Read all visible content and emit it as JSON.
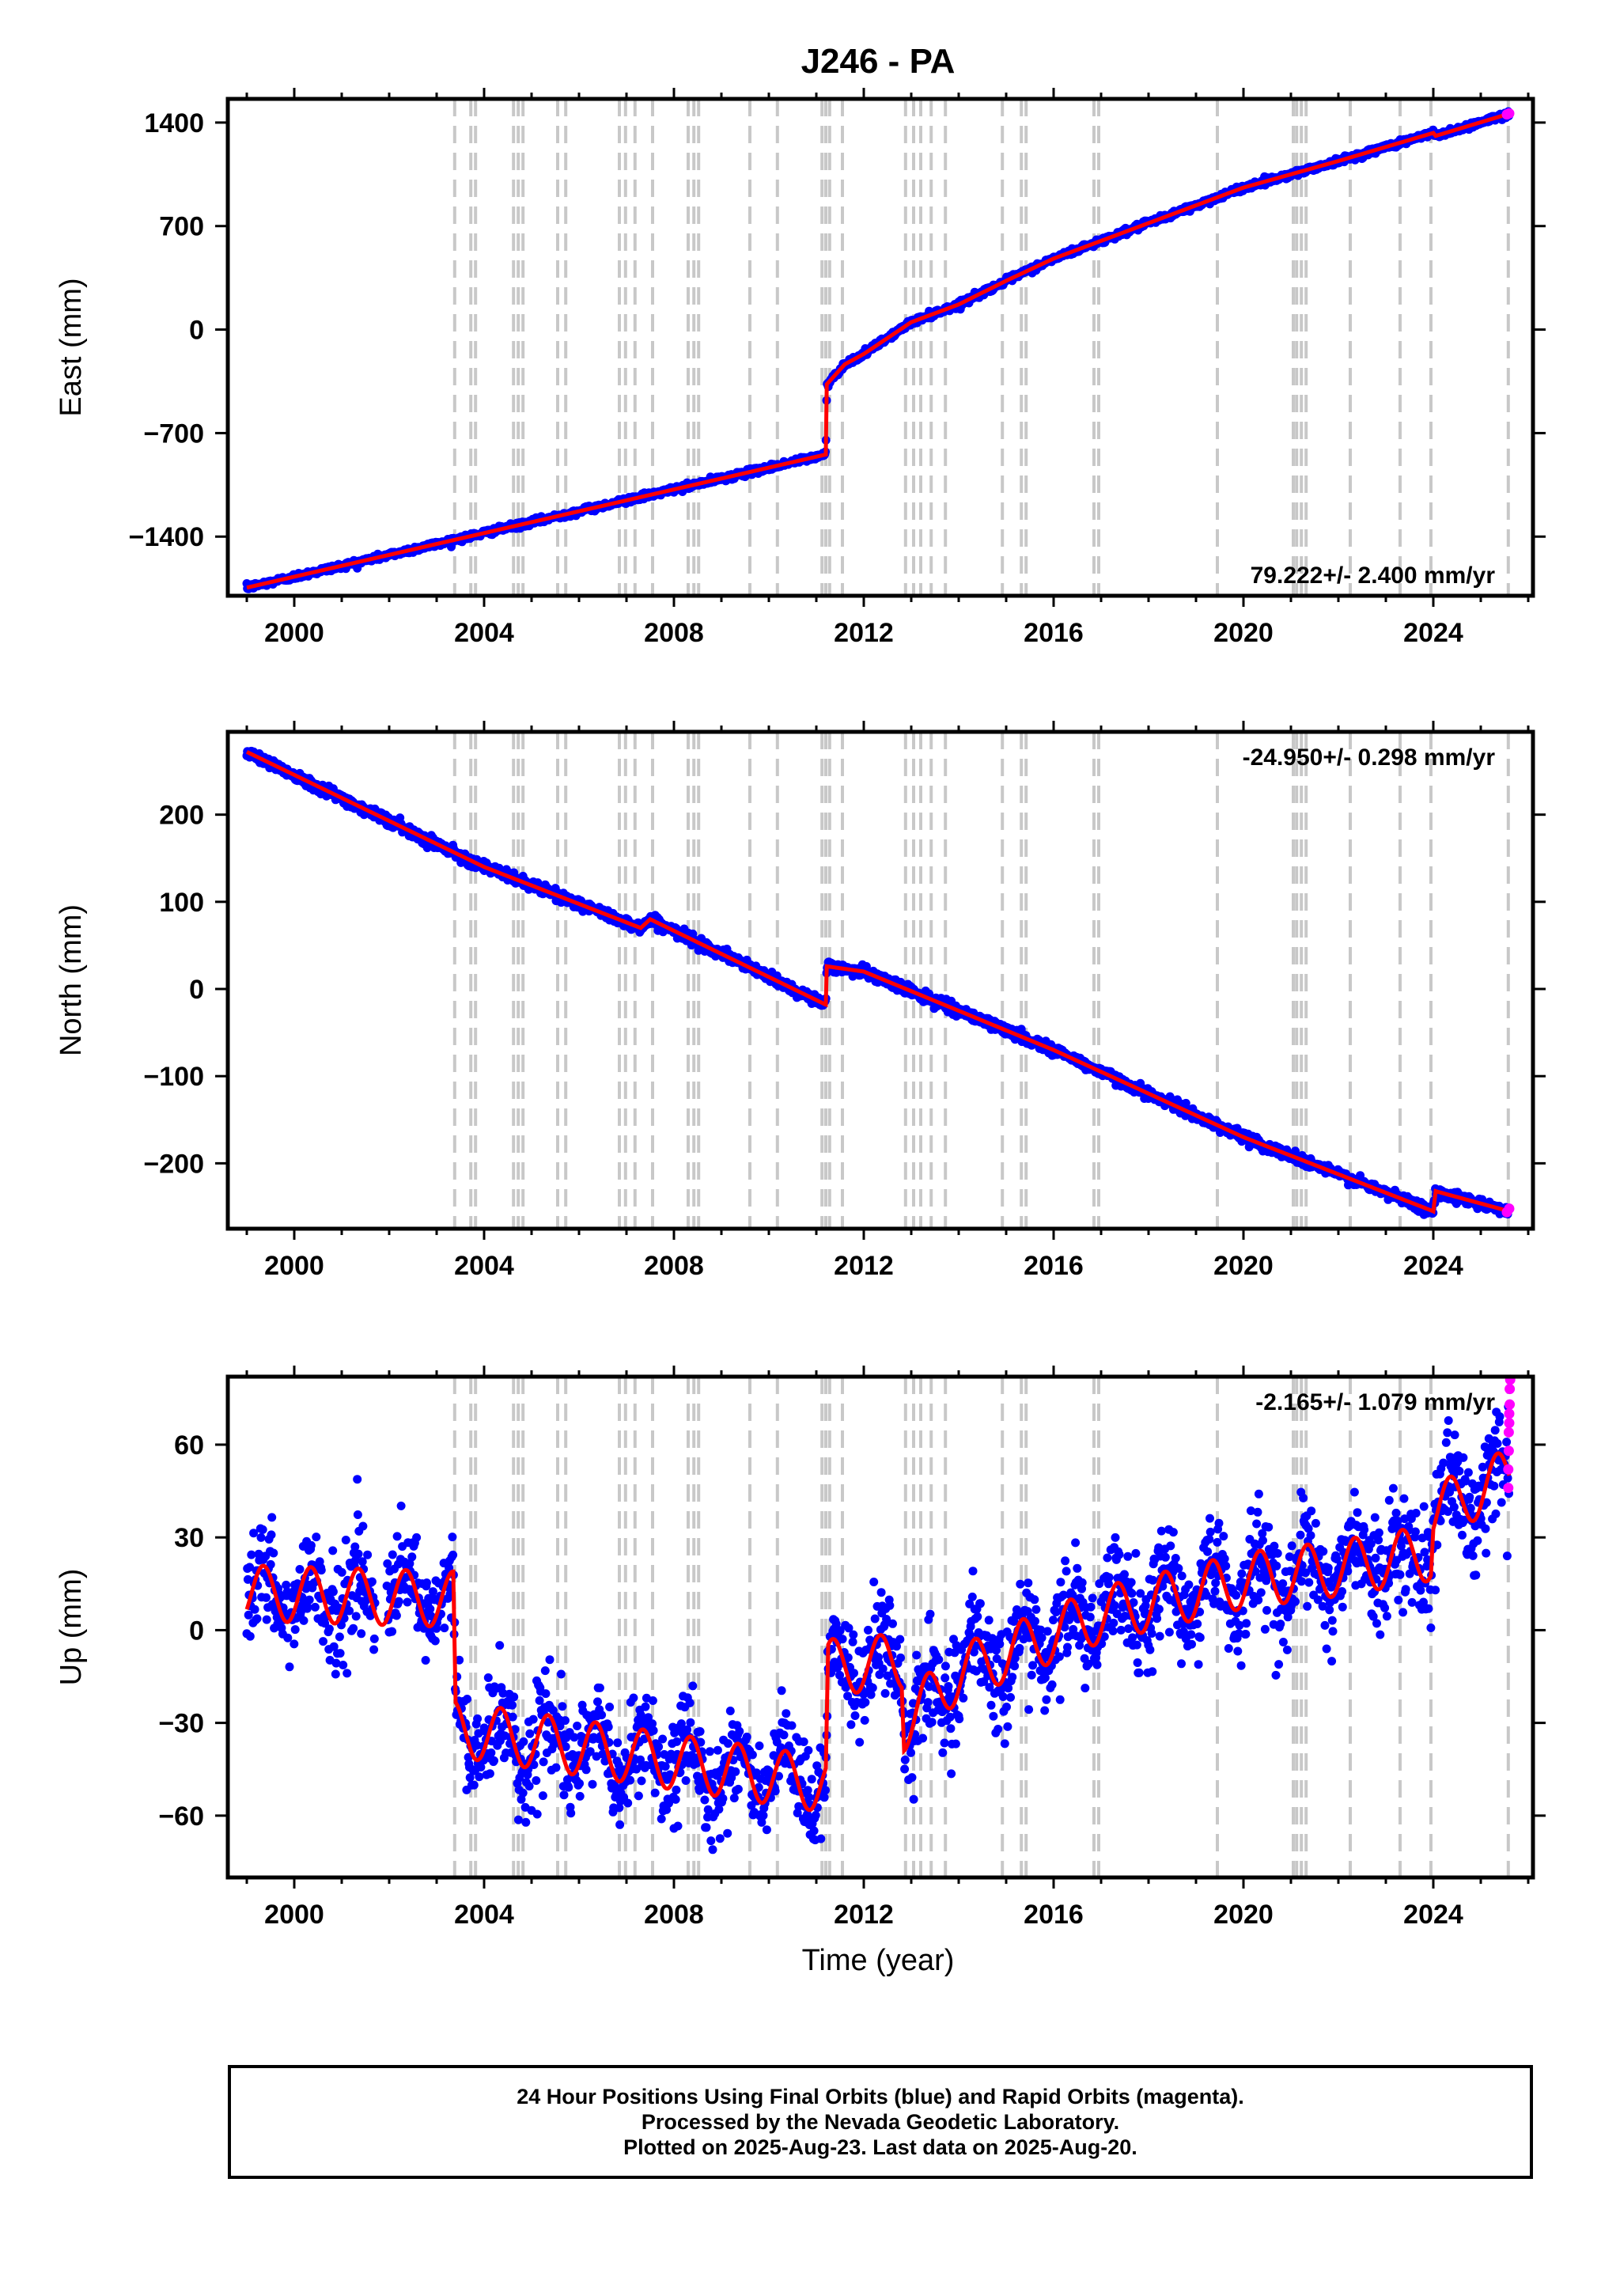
{
  "title": "J246 - PA",
  "xlabel": "Time (year)",
  "caption": [
    "24 Hour Positions Using Final Orbits (blue) and Rapid Orbits (magenta).",
    "Processed by the Nevada Geodetic Laboratory.",
    "Plotted on 2025-Aug-23. Last data on 2025-Aug-20."
  ],
  "colors": {
    "final_orbits": "#0000ff",
    "rapid_orbits": "#ff00ff",
    "model_fit": "#ff0000",
    "event_lines": "#c8c8c8"
  },
  "chart_data": [
    {
      "type": "scatter",
      "component": "east",
      "ylabel": "East (mm)",
      "rate_label": "79.222+/- 2.400 mm/yr",
      "xlim": [
        1998.6,
        2026.1
      ],
      "ylim": [
        -1800,
        1560
      ],
      "xticks": [
        "2000",
        "2004",
        "2008",
        "2012",
        "2016",
        "2020",
        "2024"
      ],
      "yticks": [
        "1400",
        "700",
        "0",
        "−700",
        "−1400"
      ],
      "ytick_values": [
        1400,
        700,
        0,
        -700,
        -1400
      ],
      "trend": [
        [
          1999.0,
          -1745
        ],
        [
          2011.2,
          -845
        ],
        [
          2011.22,
          -370
        ],
        [
          2011.6,
          -235
        ],
        [
          2012.0,
          -165
        ],
        [
          2013.0,
          50
        ],
        [
          2014.0,
          170
        ],
        [
          2015.0,
          330
        ],
        [
          2016.0,
          480
        ],
        [
          2018.0,
          720
        ],
        [
          2020.0,
          960
        ],
        [
          2022.0,
          1140
        ],
        [
          2024.0,
          1330
        ],
        [
          2024.05,
          1310
        ],
        [
          2025.6,
          1460
        ]
      ],
      "scatter_sigma": 10,
      "rapid_points": [
        [
          2025.55,
          1455
        ],
        [
          2025.6,
          1462
        ]
      ]
    },
    {
      "type": "scatter",
      "component": "north",
      "ylabel": "North (mm)",
      "rate_label": "-24.950+/- 0.298 mm/yr",
      "xlim": [
        1998.6,
        2026.1
      ],
      "ylim": [
        -275,
        295
      ],
      "xticks": [
        "2000",
        "2004",
        "2008",
        "2012",
        "2016",
        "2020",
        "2024"
      ],
      "yticks": [
        "200",
        "100",
        "0",
        "−100",
        "−200"
      ],
      "ytick_values": [
        200,
        100,
        0,
        -100,
        -200
      ],
      "trend": [
        [
          1999.0,
          272
        ],
        [
          2004.0,
          140
        ],
        [
          2007.3,
          70
        ],
        [
          2007.5,
          80
        ],
        [
          2011.2,
          -18
        ],
        [
          2011.22,
          26
        ],
        [
          2012.0,
          20
        ],
        [
          2016.0,
          -70
        ],
        [
          2020.0,
          -170
        ],
        [
          2024.0,
          -255
        ],
        [
          2024.05,
          -232
        ],
        [
          2025.6,
          -255
        ]
      ],
      "scatter_sigma": 3,
      "rapid_points": [
        [
          2025.55,
          -256
        ],
        [
          2025.6,
          -252
        ]
      ]
    },
    {
      "type": "scatter",
      "component": "up",
      "ylabel": "Up (mm)",
      "rate_label": "-2.165+/- 1.079 mm/yr",
      "xlim": [
        1998.6,
        2026.1
      ],
      "ylim": [
        -80,
        82
      ],
      "xticks": [
        "2000",
        "2004",
        "2008",
        "2012",
        "2016",
        "2020",
        "2024"
      ],
      "yticks": [
        "60",
        "30",
        "0",
        "−30",
        "−60"
      ],
      "ytick_values": [
        60,
        30,
        0,
        -30,
        -60
      ],
      "trend": [
        [
          1999.0,
          12
        ],
        [
          2003.35,
          10
        ],
        [
          2003.4,
          -32
        ],
        [
          2011.2,
          -50
        ],
        [
          2011.25,
          -12
        ],
        [
          2012.8,
          -10
        ],
        [
          2012.85,
          -30
        ],
        [
          2014.0,
          -14
        ],
        [
          2017.0,
          5
        ],
        [
          2020.0,
          16
        ],
        [
          2022.0,
          20
        ],
        [
          2023.95,
          25
        ],
        [
          2024.0,
          38
        ],
        [
          2025.6,
          50
        ]
      ],
      "seasonal_amplitude": 9,
      "scatter_sigma": 8,
      "rapid_points": [
        [
          2025.58,
          46
        ],
        [
          2025.58,
          52
        ],
        [
          2025.59,
          58
        ],
        [
          2025.59,
          64
        ],
        [
          2025.6,
          67
        ],
        [
          2025.6,
          70
        ],
        [
          2025.61,
          73
        ],
        [
          2025.61,
          78
        ],
        [
          2025.62,
          81
        ]
      ]
    }
  ],
  "event_lines": [
    2003.38,
    2003.72,
    2003.82,
    2004.62,
    2004.72,
    2004.82,
    2005.55,
    2005.72,
    2006.85,
    2006.98,
    2007.18,
    2007.55,
    2008.3,
    2008.42,
    2008.52,
    2009.6,
    2010.18,
    2011.12,
    2011.2,
    2011.28,
    2011.55,
    2012.88,
    2013.05,
    2013.2,
    2013.42,
    2013.72,
    2014.92,
    2015.32,
    2015.42,
    2016.85,
    2016.95,
    2019.45,
    2021.05,
    2021.12,
    2021.22,
    2021.32,
    2022.25,
    2023.3,
    2023.95,
    2025.58
  ]
}
